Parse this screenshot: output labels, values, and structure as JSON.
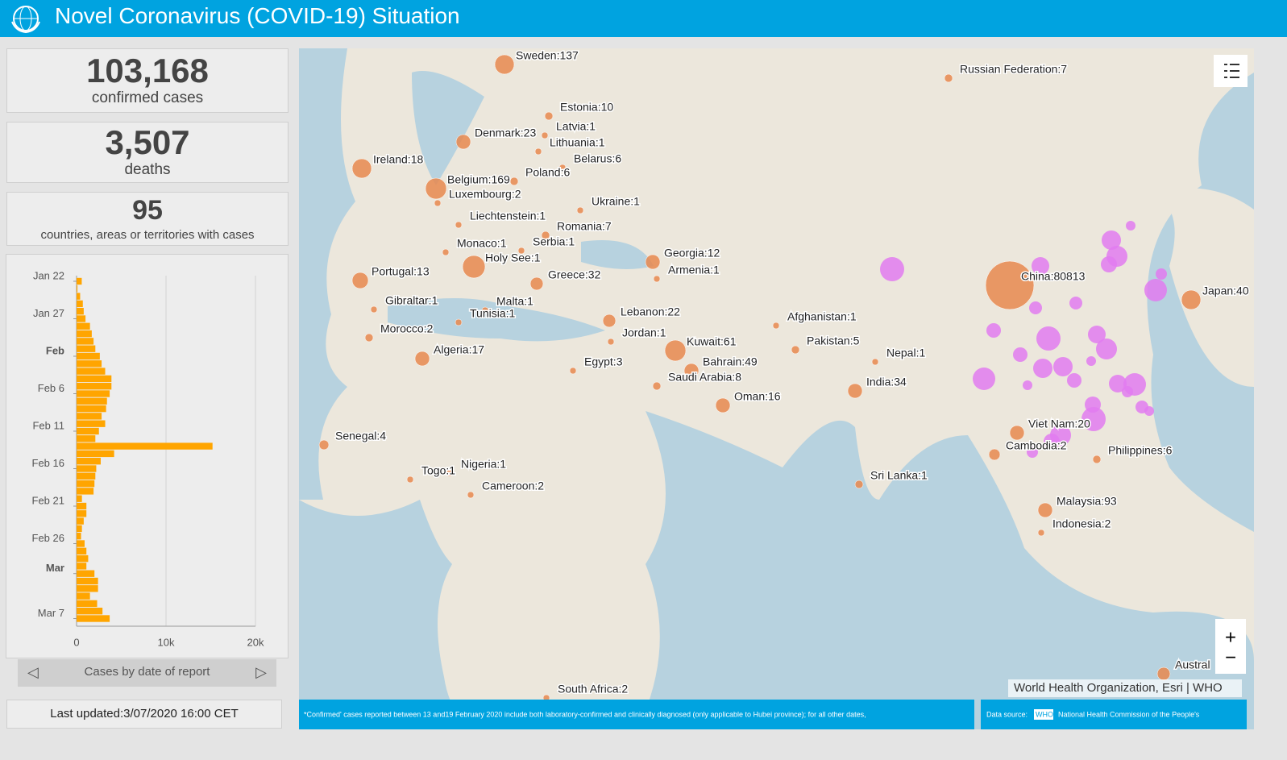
{
  "header": {
    "title": "Novel Coronavirus (COVID-19) Situation"
  },
  "stats": [
    {
      "value": "103,168",
      "label": "confirmed cases"
    },
    {
      "value": "3,507",
      "label": "deaths"
    },
    {
      "value": "95",
      "label": "countries, areas or territories with cases"
    }
  ],
  "chart_data": {
    "type": "bar",
    "orientation": "horizontal",
    "title": "Cases by date of report",
    "color": "#ffa500",
    "categories": [
      "Jan 22",
      null,
      null,
      null,
      null,
      "Jan 27",
      null,
      null,
      null,
      null,
      "Feb",
      null,
      null,
      null,
      null,
      "Feb 6",
      null,
      null,
      null,
      null,
      "Feb 11",
      null,
      null,
      null,
      null,
      "Feb 16",
      null,
      null,
      null,
      null,
      "Feb 21",
      null,
      null,
      null,
      null,
      "Feb 26",
      null,
      null,
      null,
      "Mar",
      null,
      null,
      null,
      null,
      null,
      "Mar 7"
    ],
    "values": [
      580,
      100,
      400,
      700,
      800,
      1000,
      1500,
      1700,
      1900,
      2100,
      2600,
      2800,
      3200,
      3900,
      3900,
      3700,
      3400,
      3300,
      2800,
      3200,
      2500,
      2100,
      15200,
      4200,
      2700,
      2200,
      2100,
      2000,
      1900,
      600,
      1100,
      1100,
      800,
      600,
      500,
      900,
      1100,
      1300,
      1100,
      2000,
      2400,
      2400,
      1500,
      2300,
      2900,
      3700
    ],
    "xlim": [
      0,
      20000
    ],
    "xticks": [
      0,
      {
        "value": 10000,
        "label": "10k"
      },
      {
        "value": 20000,
        "label": "20k"
      }
    ],
    "grid": true
  },
  "last_updated": "Last updated:3/07/2020 16:00 CET",
  "map": {
    "labels": [
      "Sweden:137",
      "Russian Federation:7",
      "Estonia:10",
      "Latvia:1",
      "Denmark:23",
      "Lithuania:1",
      "Belarus:6",
      "Ireland:18",
      "Poland:6",
      "Belgium:169",
      "Luxembourg:2",
      "Ukraine:1",
      "Liechtenstein:1",
      "Romania:7",
      "Monaco:1",
      "Serbia:1",
      "Georgia:12",
      "Holy See:1",
      "Portugal:13",
      "Armenia:1",
      "Greece:32",
      "China:80813",
      "Japan:40",
      "Gibraltar:1",
      "Malta:1",
      "Tunisia:1",
      "Lebanon:22",
      "Afghanistan:1",
      "Morocco:2",
      "Jordan:1",
      "Kuwait:61",
      "Pakistan:5",
      "Algeria:17",
      "Nepal:1",
      "Egypt:3",
      "Bahrain:49",
      "Saudi Arabia:8",
      "India:34",
      "Oman:16",
      "Viet Nam:20",
      "Senegal:4",
      "Cambodia:2",
      "Philippines:6",
      "Nigeria:1",
      "Togo:1",
      "Sri Lanka:1",
      "Cameroon:2",
      "Malaysia:93",
      "Indonesia:2",
      "Austral",
      "South Africa:2"
    ],
    "attribution": "World Health Organization, Esri | WHO",
    "footnote": "*Confirmed' cases reported between 13 and19 February 2020 include both laboratory-confirmed and clinically diagnosed (only  applicable to Hubei province); for all other dates,",
    "source_prefix": "Data source:",
    "source_link": "WHO",
    "source_rest": "National Health Commission of the People's"
  }
}
